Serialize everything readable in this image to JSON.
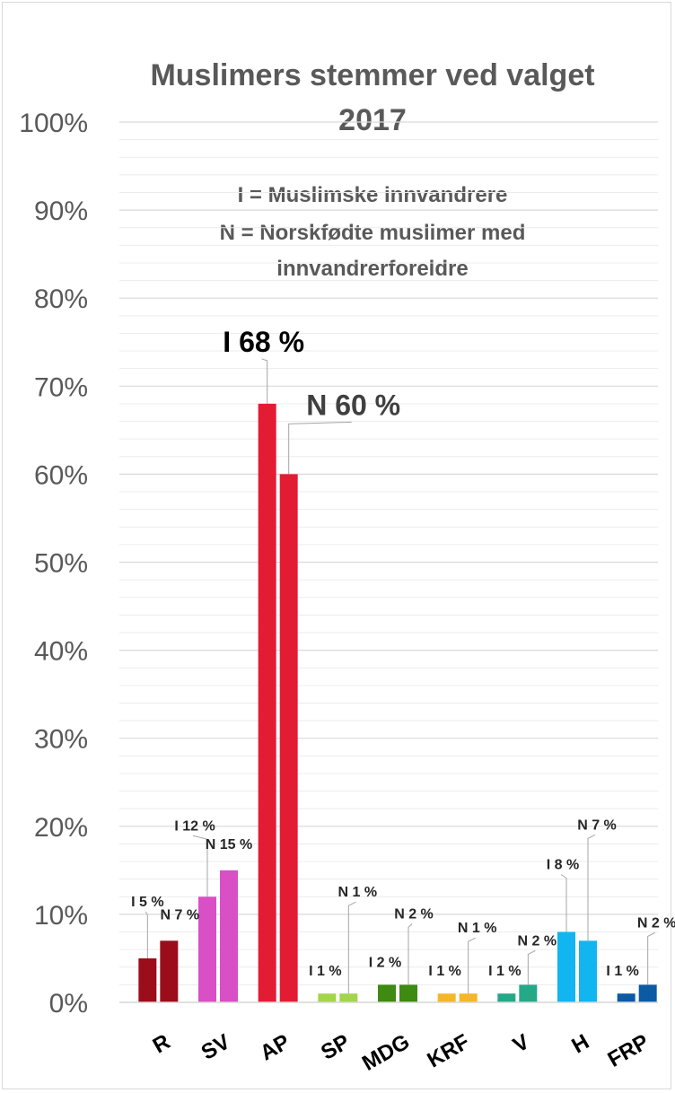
{
  "chart_data": {
    "type": "bar",
    "title_line1": "Muslimers stemmer ved valget",
    "title_line2": "2017",
    "annotation_lines": [
      "I = Muslimske innvandrere",
      "N = Norskfødte muslimer med",
      "innvandrerforeldre"
    ],
    "categories": [
      "R",
      "SV",
      "AP",
      "SP",
      "MDG",
      "KRF",
      "V",
      "H",
      "FRP"
    ],
    "series": [
      {
        "values": [
          5,
          12,
          68,
          1,
          2,
          1,
          1,
          8,
          1
        ],
        "labels": [
          "I 5 %",
          "I 12 %",
          "I 68 %",
          "I 1 %",
          "I 2 %",
          "I 1 %",
          "I 1 %",
          "I 8 %",
          "I 1 %"
        ]
      },
      {
        "values": [
          7,
          15,
          60,
          1,
          2,
          1,
          2,
          7,
          2
        ],
        "labels": [
          "N 7 %",
          "N 15 %",
          "N 60 %",
          "N 1 %",
          "N 2 %",
          "N 1 %",
          "N 2 %",
          "N 7 %",
          "N 2 %"
        ]
      }
    ],
    "party_colors": [
      [
        "#9b0d1b",
        "#9b0d1b"
      ],
      [
        "#d84fc6",
        "#d84fc6"
      ],
      [
        "#e31b33",
        "#e31b33"
      ],
      [
        "#a2d54a",
        "#a2d54a"
      ],
      [
        "#3f8a10",
        "#3f8a10"
      ],
      [
        "#f5b62b",
        "#f5b62b"
      ],
      [
        "#25a888",
        "#25a888"
      ],
      [
        "#12b5ef",
        "#12b5ef"
      ],
      [
        "#0b5aa3",
        "#0b5aa3"
      ]
    ],
    "y_ticks": [
      "0%",
      "10%",
      "20%",
      "30%",
      "40%",
      "50%",
      "60%",
      "70%",
      "80%",
      "90%",
      "100%"
    ],
    "ylim": [
      0,
      100
    ],
    "grid": true
  }
}
